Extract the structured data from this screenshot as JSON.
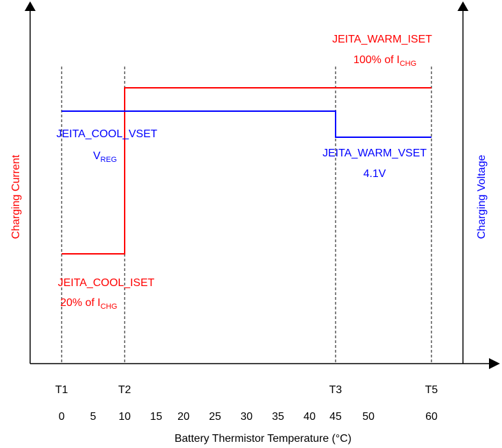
{
  "chart_data": {
    "type": "line",
    "xlabel": "Battery Thermistor Temperature (°C)",
    "ylabel_left": "Charging Current",
    "ylabel_right": "Charging Voltage",
    "threshold_labels": [
      {
        "name": "T1",
        "temp": 0
      },
      {
        "name": "T2",
        "temp": 10
      },
      {
        "name": "T3",
        "temp": 45
      },
      {
        "name": "T5",
        "temp": 60
      }
    ],
    "x_ticks": [
      0,
      5,
      10,
      15,
      20,
      25,
      30,
      35,
      40,
      45,
      50,
      60
    ],
    "series": [
      {
        "name": "Charging Current",
        "color": "#ff0000",
        "points": [
          [
            0,
            20
          ],
          [
            10,
            20
          ],
          [
            10,
            100
          ],
          [
            60,
            100
          ]
        ]
      },
      {
        "name": "Charging Voltage",
        "color": "#0000ff",
        "points": [
          [
            0,
            1.0
          ],
          [
            45,
            1.0
          ],
          [
            45,
            0.87
          ],
          [
            60,
            0.87
          ]
        ]
      }
    ],
    "annotations": {
      "warm_iset": {
        "title": "JEITA_WARM_ISET",
        "value_main": "100% of I",
        "value_sub": "CHG"
      },
      "cool_vset": {
        "title": "JEITA_COOL_VSET",
        "value_main": "V",
        "value_sub": "REG"
      },
      "warm_vset": {
        "title": "JEITA_WARM_VSET",
        "value_main": "4.1V"
      },
      "cool_iset": {
        "title": "JEITA_COOL_ISET",
        "value_main": "20% of I",
        "value_sub": "CHG"
      }
    }
  }
}
